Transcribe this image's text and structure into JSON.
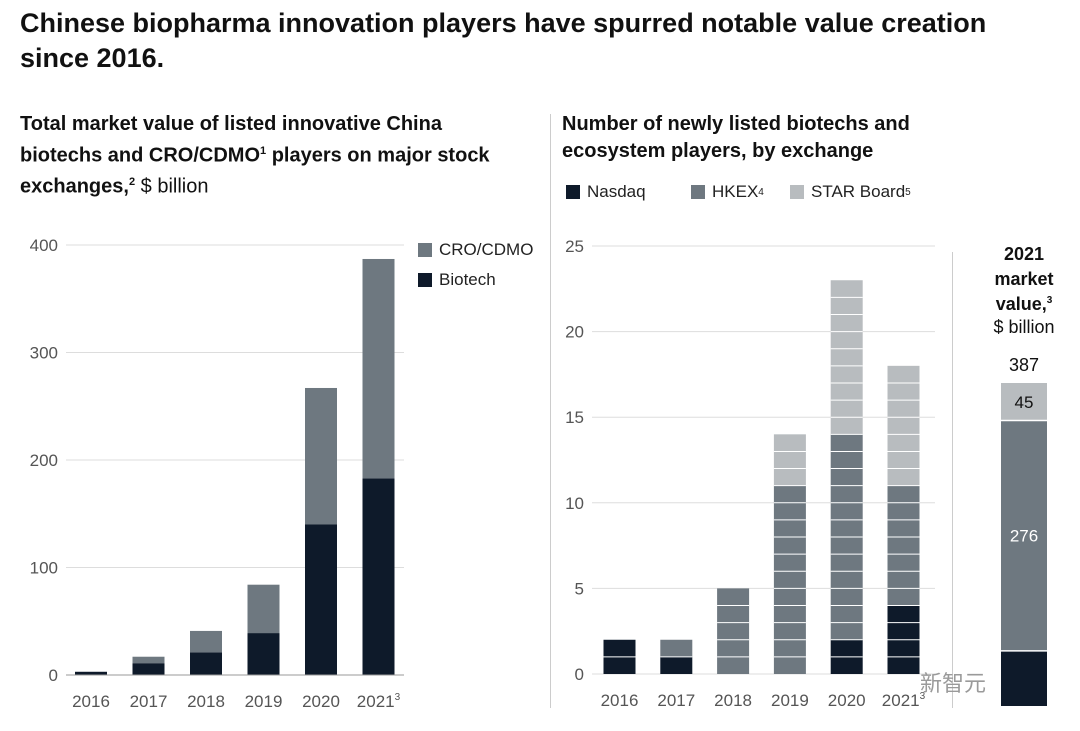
{
  "title": "Chinese biopharma innovation players have spurred notable value creation since 2016.",
  "colors": {
    "biotech": "#0e1a2a",
    "cro": "#6e7880",
    "nasdaq": "#0e1a2a",
    "hkex": "#6e7880",
    "star": "#b8bcbf",
    "grid": "#dddddd"
  },
  "left": {
    "title_bold_1": "Total market value of listed innovative China biotechs and CRO/CDMO",
    "title_sup_1": "1",
    "title_bold_2": " players on major stock exchanges,",
    "title_sup_2": "2",
    "title_unit": " $ billion",
    "legend": [
      {
        "label": "CRO/CDMO",
        "color": "#6e7880"
      },
      {
        "label": "Biotech",
        "color": "#0e1a2a"
      }
    ]
  },
  "right": {
    "title": "Number of newly listed biotechs and ecosystem players, by exchange",
    "legend": [
      {
        "label": "Nasdaq",
        "sup": "",
        "color": "#0e1a2a"
      },
      {
        "label": "HKEX",
        "sup": "4",
        "color": "#6e7880"
      },
      {
        "label": "STAR Board",
        "sup": "5",
        "color": "#b8bcbf"
      }
    ],
    "side_title": [
      "2021",
      "market",
      "value,"
    ],
    "side_title_sup": "3",
    "side_unit": "$ billion",
    "watermark": "新智元"
  },
  "chart_data": [
    {
      "type": "bar",
      "stacked": true,
      "title": "Total market value of listed innovative China biotechs and CRO/CDMO players on major stock exchanges, $ billion",
      "categories": [
        "2016",
        "2017",
        "2018",
        "2019",
        "2020",
        "2021"
      ],
      "category_sups": [
        "",
        "",
        "",
        "",
        "",
        "3"
      ],
      "series": [
        {
          "name": "Biotech",
          "values": [
            3,
            11,
            21,
            39,
            140,
            183
          ]
        },
        {
          "name": "CRO/CDMO",
          "values": [
            0,
            6,
            20,
            45,
            127,
            204
          ]
        }
      ],
      "yticks": [
        0,
        100,
        200,
        300,
        400
      ],
      "ylim": [
        0,
        400
      ],
      "legend_position": "top-right"
    },
    {
      "type": "bar",
      "stacked": true,
      "title": "Number of newly listed biotechs and ecosystem players, by exchange",
      "categories": [
        "2016",
        "2017",
        "2018",
        "2019",
        "2020",
        "2021"
      ],
      "category_sups": [
        "",
        "",
        "",
        "",
        "",
        "3"
      ],
      "series": [
        {
          "name": "Nasdaq",
          "values": [
            2,
            1,
            0,
            0,
            2,
            4
          ]
        },
        {
          "name": "HKEX",
          "values": [
            0,
            1,
            5,
            11,
            12,
            7
          ]
        },
        {
          "name": "STAR Board",
          "values": [
            0,
            0,
            0,
            3,
            9,
            7
          ]
        }
      ],
      "yticks": [
        0,
        5,
        10,
        15,
        20,
        25
      ],
      "ylim": [
        0,
        25
      ],
      "legend_position": "top"
    },
    {
      "type": "bar",
      "stacked": true,
      "title": "2021 market value, $ billion",
      "total": 387,
      "series": [
        {
          "name": "Nasdaq",
          "value": 66,
          "label": ""
        },
        {
          "name": "HKEX",
          "value": 276,
          "label": "276"
        },
        {
          "name": "STAR Board",
          "value": 45,
          "label": "45"
        }
      ]
    }
  ]
}
